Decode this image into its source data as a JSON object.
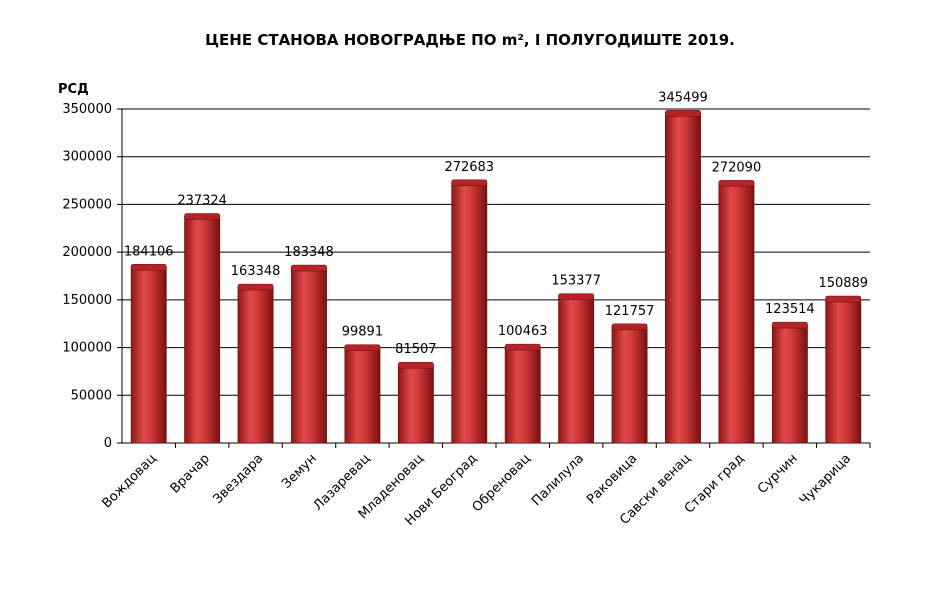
{
  "chart_data": {
    "type": "bar",
    "title": "ЦЕНЕ СТАНОВА НОВОГРАДЊЕ ПО m², I ПОЛУГОДИШТЕ 2019.",
    "ylabel": "РСД",
    "xlabel": "",
    "ylim": [
      0,
      350000
    ],
    "yticks": [
      0,
      50000,
      100000,
      150000,
      200000,
      250000,
      300000,
      350000
    ],
    "grid": true,
    "legend": "none",
    "categories": [
      "Вождовац",
      "Врачар",
      "Звездара",
      "Земун",
      "Лазаревац",
      "Младеновац",
      "Нови Београд",
      "Обреновац",
      "Палилула",
      "Раковица",
      "Савски венац",
      "Стари  град",
      "Сурчин",
      "Чукарица"
    ],
    "values": [
      184106,
      237324,
      163348,
      183348,
      99891,
      81507,
      272683,
      100463,
      153377,
      121757,
      345499,
      272090,
      123514,
      150889
    ],
    "bar_color": "#c0292b"
  }
}
